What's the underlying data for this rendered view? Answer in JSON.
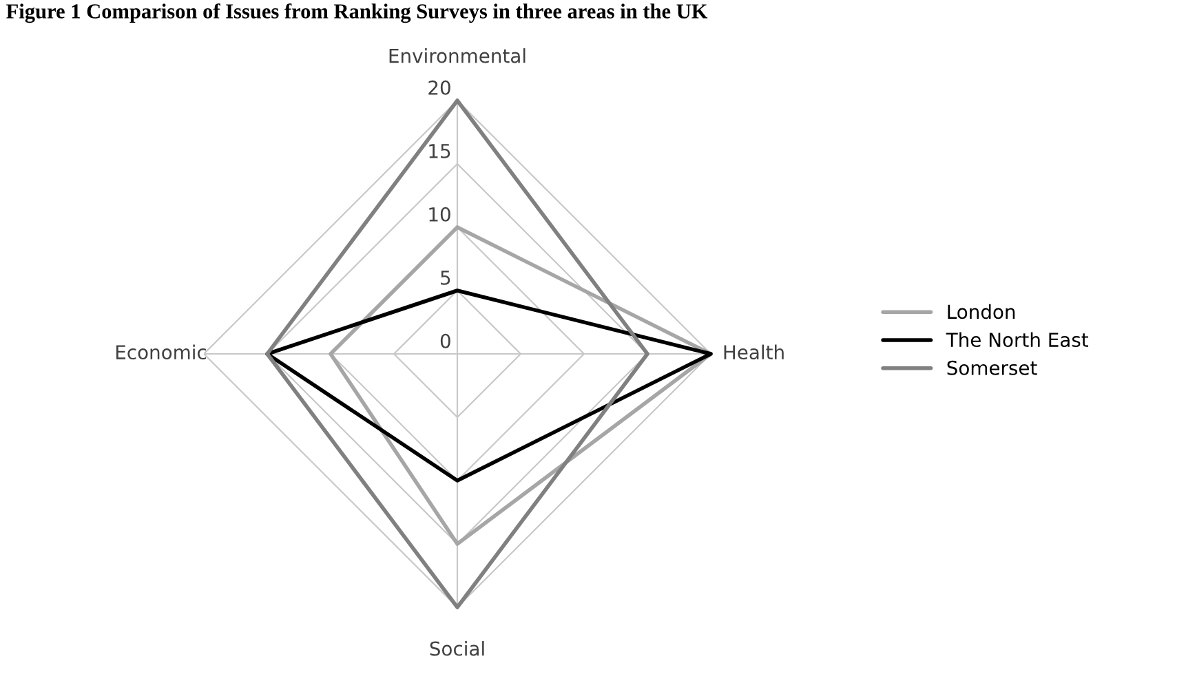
{
  "chart_data": {
    "type": "radar",
    "title": "Figure 1 Comparison of Issues from Ranking Surveys in three areas in the UK",
    "categories": [
      "Environmental",
      "Health",
      "Social",
      "Economic"
    ],
    "series": [
      {
        "name": "London",
        "color": "#a6a6a6",
        "values": [
          10,
          20,
          15,
          10
        ]
      },
      {
        "name": "The North East",
        "color": "#000000",
        "values": [
          5,
          20,
          10,
          15
        ]
      },
      {
        "name": "Somerset",
        "color": "#808080",
        "values": [
          20,
          15,
          20,
          15
        ]
      }
    ],
    "ylim": [
      0,
      20
    ],
    "yticks": [
      0,
      5,
      10,
      15,
      20
    ],
    "grid": true,
    "legend": "right",
    "marker": "none",
    "line_style": "solid"
  }
}
